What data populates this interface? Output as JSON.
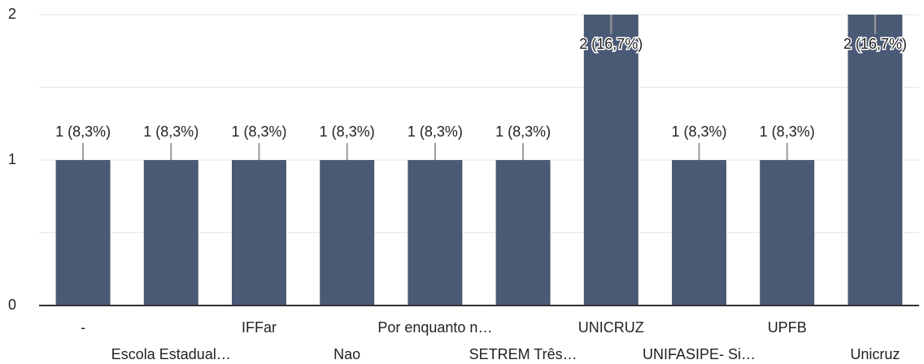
{
  "chart_data": {
    "type": "bar",
    "categories": [
      "-",
      "Escola Estadual…",
      "IFFar",
      "Nao",
      "Por enquanto n…",
      "SETREM Três…",
      "UNICRUZ",
      "UNIFASIPE- Si…",
      "UPFB",
      "Unicruz"
    ],
    "values": [
      1,
      1,
      1,
      1,
      1,
      1,
      2,
      1,
      1,
      2
    ],
    "value_labels": [
      "1 (8,3%)",
      "1 (8,3%)",
      "1 (8,3%)",
      "1 (8,3%)",
      "1 (8,3%)",
      "1 (8,3%)",
      "2 (16,7%)",
      "1 (8,3%)",
      "1 (8,3%)",
      "2 (16,7%)"
    ],
    "color": "#4a5a75",
    "ylim": [
      0,
      2
    ],
    "yticks": [
      0,
      1,
      2
    ],
    "minor_yticks": [
      0.5,
      1.5
    ],
    "grid": true
  }
}
